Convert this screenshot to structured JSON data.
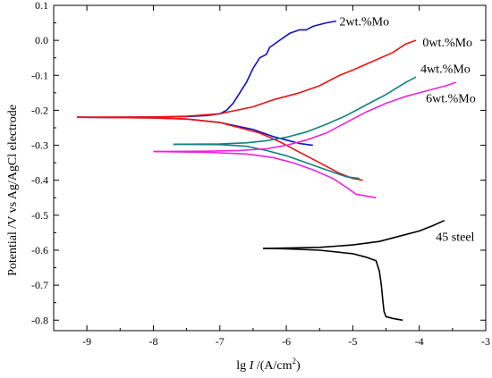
{
  "chart_data": {
    "type": "line",
    "xlabel_prefix": "lg ",
    "xlabel_var": "I",
    "xlabel_unit": " /(A/cm",
    "xlabel_sup": "2",
    "xlabel_close": ")",
    "ylabel": "Potential /V vs Ag/AgCl electrode",
    "xlim": [
      -9.5,
      -3
    ],
    "ylim": [
      -0.83,
      0.1
    ],
    "x_ticks": [
      "-9",
      "-8",
      "-7",
      "-6",
      "-5",
      "-4",
      "-3"
    ],
    "y_ticks": [
      "0.1",
      "0.0",
      "-0.1",
      "-0.2",
      "-0.3",
      "-0.4",
      "-0.5",
      "-0.6",
      "-0.7",
      "-0.8"
    ],
    "series": [
      {
        "name": "2wt.%Mo",
        "color": "#1010c8",
        "points": [
          [
            -9.15,
            -0.22
          ],
          [
            -8.5,
            -0.22
          ],
          [
            -8.0,
            -0.219
          ],
          [
            -7.5,
            -0.218
          ],
          [
            -7.2,
            -0.215
          ],
          [
            -7.0,
            -0.21
          ],
          [
            -6.9,
            -0.2
          ],
          [
            -6.8,
            -0.18
          ],
          [
            -6.7,
            -0.15
          ],
          [
            -6.6,
            -0.12
          ],
          [
            -6.5,
            -0.08
          ],
          [
            -6.4,
            -0.05
          ],
          [
            -6.3,
            -0.04
          ],
          [
            -6.25,
            -0.02
          ],
          [
            -6.1,
            0.0
          ],
          [
            -5.95,
            0.02
          ],
          [
            -5.8,
            0.03
          ],
          [
            -5.7,
            0.03
          ],
          [
            -5.6,
            0.04
          ],
          [
            -5.5,
            0.045
          ],
          [
            -5.4,
            0.05
          ],
          [
            -5.25,
            0.055
          ]
        ],
        "cathodic": [
          [
            -9.15,
            -0.22
          ],
          [
            -8.0,
            -0.222
          ],
          [
            -7.5,
            -0.225
          ],
          [
            -7.0,
            -0.235
          ],
          [
            -6.5,
            -0.255
          ],
          [
            -6.2,
            -0.275
          ],
          [
            -6.0,
            -0.285
          ],
          [
            -5.8,
            -0.295
          ],
          [
            -5.6,
            -0.3
          ]
        ]
      },
      {
        "name": "0wt.%Mo",
        "color": "#ee1111",
        "points": [
          [
            -9.15,
            -0.22
          ],
          [
            -8.0,
            -0.219
          ],
          [
            -7.5,
            -0.217
          ],
          [
            -7.0,
            -0.21
          ],
          [
            -6.5,
            -0.19
          ],
          [
            -6.2,
            -0.17
          ],
          [
            -6.0,
            -0.16
          ],
          [
            -5.8,
            -0.15
          ],
          [
            -5.5,
            -0.13
          ],
          [
            -5.2,
            -0.1
          ],
          [
            -5.0,
            -0.085
          ],
          [
            -4.7,
            -0.06
          ],
          [
            -4.4,
            -0.035
          ],
          [
            -4.2,
            -0.01
          ],
          [
            -4.05,
            0.0
          ]
        ],
        "cathodic": [
          [
            -9.15,
            -0.22
          ],
          [
            -8.0,
            -0.222
          ],
          [
            -7.5,
            -0.225
          ],
          [
            -7.0,
            -0.235
          ],
          [
            -6.7,
            -0.25
          ],
          [
            -6.4,
            -0.265
          ],
          [
            -6.1,
            -0.29
          ],
          [
            -5.8,
            -0.32
          ],
          [
            -5.5,
            -0.35
          ],
          [
            -5.2,
            -0.38
          ],
          [
            -5.0,
            -0.395
          ],
          [
            -4.85,
            -0.4
          ]
        ]
      },
      {
        "name": "4wt.%Mo",
        "color": "#118080",
        "points": [
          [
            -7.7,
            -0.297
          ],
          [
            -7.0,
            -0.296
          ],
          [
            -6.6,
            -0.293
          ],
          [
            -6.3,
            -0.287
          ],
          [
            -6.0,
            -0.277
          ],
          [
            -5.7,
            -0.262
          ],
          [
            -5.4,
            -0.24
          ],
          [
            -5.1,
            -0.215
          ],
          [
            -4.8,
            -0.185
          ],
          [
            -4.5,
            -0.155
          ],
          [
            -4.2,
            -0.12
          ],
          [
            -4.05,
            -0.105
          ]
        ],
        "cathodic": [
          [
            -7.7,
            -0.297
          ],
          [
            -7.0,
            -0.298
          ],
          [
            -6.6,
            -0.303
          ],
          [
            -6.3,
            -0.315
          ],
          [
            -6.0,
            -0.33
          ],
          [
            -5.7,
            -0.35
          ],
          [
            -5.4,
            -0.37
          ],
          [
            -5.1,
            -0.39
          ],
          [
            -4.9,
            -0.395
          ]
        ]
      },
      {
        "name": "6wt.%Mo",
        "color": "#ee22dd",
        "points": [
          [
            -8.0,
            -0.318
          ],
          [
            -7.2,
            -0.317
          ],
          [
            -6.7,
            -0.315
          ],
          [
            -6.3,
            -0.31
          ],
          [
            -6.0,
            -0.3
          ],
          [
            -5.7,
            -0.285
          ],
          [
            -5.4,
            -0.265
          ],
          [
            -5.1,
            -0.235
          ],
          [
            -4.8,
            -0.205
          ],
          [
            -4.5,
            -0.18
          ],
          [
            -4.2,
            -0.16
          ],
          [
            -3.9,
            -0.145
          ],
          [
            -3.6,
            -0.13
          ],
          [
            -3.45,
            -0.12
          ]
        ],
        "cathodic": [
          [
            -8.0,
            -0.318
          ],
          [
            -7.2,
            -0.32
          ],
          [
            -6.6,
            -0.325
          ],
          [
            -6.2,
            -0.335
          ],
          [
            -5.9,
            -0.35
          ],
          [
            -5.6,
            -0.37
          ],
          [
            -5.3,
            -0.395
          ],
          [
            -5.1,
            -0.42
          ],
          [
            -4.95,
            -0.44
          ],
          [
            -4.8,
            -0.445
          ],
          [
            -4.65,
            -0.45
          ]
        ]
      },
      {
        "name": "45 steel",
        "color": "#000000",
        "points": [
          [
            -6.35,
            -0.595
          ],
          [
            -6.0,
            -0.594
          ],
          [
            -5.5,
            -0.592
          ],
          [
            -5.0,
            -0.585
          ],
          [
            -4.6,
            -0.575
          ],
          [
            -4.3,
            -0.56
          ],
          [
            -4.0,
            -0.545
          ],
          [
            -3.8,
            -0.53
          ],
          [
            -3.62,
            -0.515
          ]
        ],
        "cathodic": [
          [
            -6.35,
            -0.595
          ],
          [
            -6.0,
            -0.596
          ],
          [
            -5.5,
            -0.6
          ],
          [
            -5.0,
            -0.61
          ],
          [
            -4.8,
            -0.62
          ],
          [
            -4.65,
            -0.63
          ],
          [
            -4.6,
            -0.66
          ],
          [
            -4.57,
            -0.7
          ],
          [
            -4.55,
            -0.74
          ],
          [
            -4.53,
            -0.775
          ],
          [
            -4.5,
            -0.79
          ],
          [
            -4.4,
            -0.795
          ],
          [
            -4.25,
            -0.8
          ]
        ]
      }
    ],
    "annotations": [
      {
        "text": "2wt.%Mo",
        "x": -5.2,
        "y": 0.055
      },
      {
        "text": "0wt.%Mo",
        "x": -3.95,
        "y": -0.005
      },
      {
        "text": "4wt.%Mo",
        "x": -3.98,
        "y": -0.08
      },
      {
        "text": "6wt.%Mo",
        "x": -3.9,
        "y": -0.165
      },
      {
        "text": "45 steel",
        "x": -3.75,
        "y": -0.56
      }
    ]
  }
}
